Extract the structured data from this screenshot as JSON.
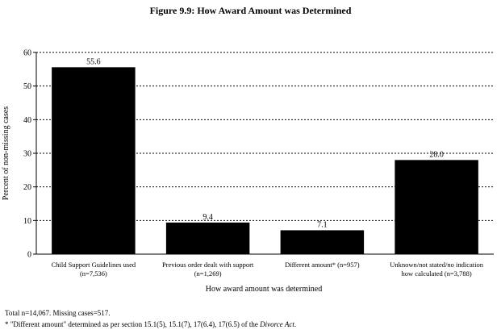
{
  "chart_data": {
    "type": "bar",
    "title": "Figure 9.9:  How Award Amount was Determined",
    "ylabel": "Percent of non-missing cases",
    "xlabel": "How award amount was determined",
    "ylim": [
      0,
      60
    ],
    "yticks": [
      0,
      10,
      20,
      30,
      40,
      50,
      60
    ],
    "grid": true,
    "categories": [
      [
        "Child Support Guidelines used",
        "(n=7,536)"
      ],
      [
        "Previous order dealt with support",
        "(n=1,269)"
      ],
      [
        "Different amount* (n=957)"
      ],
      [
        "Unknown/not stated/no indication",
        "how calculated (n=3,788)"
      ]
    ],
    "values": [
      55.6,
      9.4,
      7.1,
      28.0
    ],
    "data_labels": [
      "55.6",
      "9.4",
      "7.1",
      "28.0"
    ],
    "bar_color": "#000000"
  },
  "footnotes": {
    "total": "Total n=14,067.  Missing cases=517.",
    "different_prefix": "* \"Different amount\" determined as per section 15.1(5), 15.1(7), 17(6.4), 17(6.5) of the ",
    "different_act": "Divorce Act",
    "different_suffix": "."
  }
}
